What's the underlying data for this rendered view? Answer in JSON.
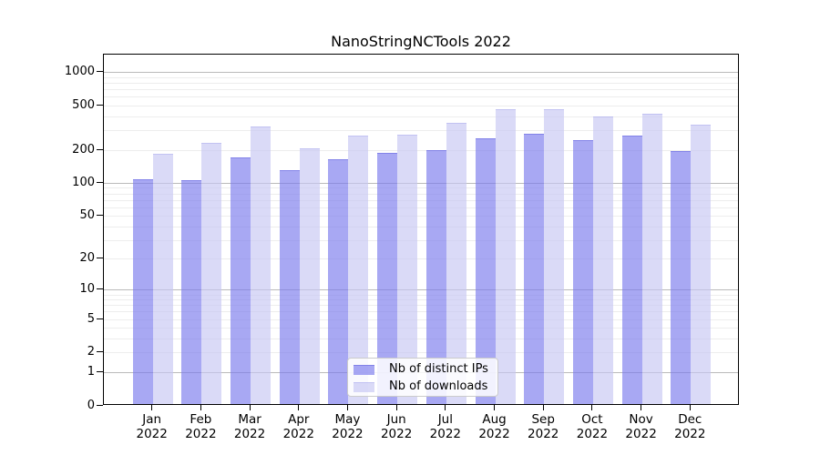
{
  "title": "NanoStringNCTools 2022",
  "chart_data": {
    "type": "bar",
    "title": "NanoStringNCTools 2022",
    "categories": [
      "Jan 2022",
      "Feb 2022",
      "Mar 2022",
      "Apr 2022",
      "May 2022",
      "Jun 2022",
      "Jul 2022",
      "Aug 2022",
      "Sep 2022",
      "Oct 2022",
      "Nov 2022",
      "Dec 2022"
    ],
    "series": [
      {
        "name": "Nb of distinct IPs",
        "values": [
          103,
          101,
          161,
          125,
          157,
          180,
          188,
          240,
          267,
          233,
          257,
          187
        ]
      },
      {
        "name": "Nb of downloads",
        "values": [
          175,
          218,
          311,
          197,
          257,
          262,
          331,
          446,
          441,
          382,
          404,
          323
        ]
      }
    ],
    "xlabel": "",
    "ylabel": "",
    "yscale": "log1p",
    "ylim": [
      0,
      1430
    ],
    "yticks": [
      0,
      1,
      2,
      5,
      10,
      20,
      50,
      100,
      200,
      500,
      1000
    ],
    "grid": true,
    "legend_position": "inside-bottom-center"
  },
  "legend": {
    "items": [
      {
        "label": "Nb of distinct IPs",
        "color": "rgba(122,122,237,0.65)",
        "edge": "rgba(84,84,220,0.45)"
      },
      {
        "label": "Nb of downloads",
        "color": "rgba(198,198,242,0.65)",
        "edge": "rgba(150,150,232,0.35)"
      }
    ]
  },
  "colors": {
    "bar_distinct_ips": "rgba(122,122,237,0.65)",
    "bar_distinct_ips_edge": "rgba(84,84,220,0.45)",
    "bar_downloads": "rgba(198,198,242,0.65)",
    "bar_downloads_edge": "rgba(150,150,232,0.35)",
    "grid_major": "#bababa",
    "grid_minor": "#ededed",
    "axis": "#000000",
    "background": "#ffffff"
  }
}
